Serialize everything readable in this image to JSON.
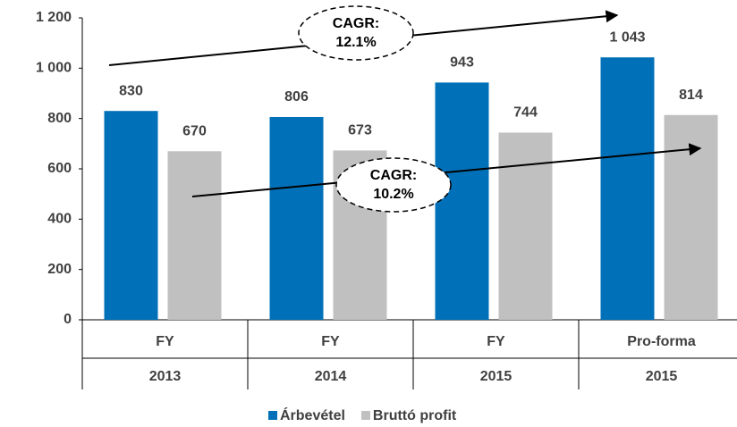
{
  "chart_data": {
    "type": "bar",
    "categories": [
      [
        "FY",
        "2013"
      ],
      [
        "FY",
        "2014"
      ],
      [
        "FY",
        "2015"
      ],
      [
        "Pro-forma",
        "2015"
      ]
    ],
    "series": [
      {
        "name": "Árbevétel",
        "color": "#0070b8",
        "values": [
          830,
          806,
          943,
          1043
        ],
        "value_labels": [
          "830",
          "806",
          "943",
          "1 043"
        ]
      },
      {
        "name": "Bruttó profit",
        "color": "#c0c0c0",
        "values": [
          670,
          673,
          744,
          814
        ],
        "value_labels": [
          "670",
          "673",
          "744",
          "814"
        ]
      }
    ],
    "ylim": [
      0,
      1200
    ],
    "yticks": [
      0,
      200,
      400,
      600,
      800,
      {
        "value": 1000,
        "label": "1 000"
      },
      {
        "value": 1200,
        "label": "1 200"
      }
    ],
    "annotations": [
      {
        "text": [
          "CAGR:",
          "12.1%"
        ]
      },
      {
        "text": [
          "CAGR:",
          "10.2%"
        ]
      }
    ],
    "legend": "bottom"
  }
}
